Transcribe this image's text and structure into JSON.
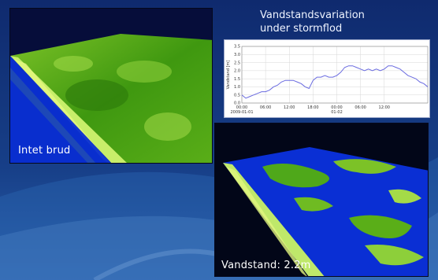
{
  "colors": {
    "background_top": "#0f2a6e",
    "background_bottom": "#1f4f9c",
    "terrain_green": "#3d9a0c",
    "terrain_light": "#b8e35a",
    "water_blue": "#0a2fd4",
    "series_line": "#6a6be0"
  },
  "panel_left": {
    "caption": "Intet brud"
  },
  "panel_right": {
    "caption": "Vandstand: 2.2m"
  },
  "chart_data": {
    "type": "line",
    "title_lines": [
      "Vandstandsvariation",
      "under stormflod"
    ],
    "ylabel": "Vandstand [m]",
    "ylim": [
      0.0,
      3.5
    ],
    "yticks": [
      "3.5",
      "3.0",
      "2.5",
      "2.0",
      "1.5",
      "1.0",
      "0.5",
      "0.0"
    ],
    "xlim": [
      0,
      47
    ],
    "xticks": [
      {
        "x": 0,
        "label": "00:00",
        "sub": "2009-01-01"
      },
      {
        "x": 6,
        "label": "06:00",
        "sub": ""
      },
      {
        "x": 12,
        "label": "12:00",
        "sub": ""
      },
      {
        "x": 18,
        "label": "18:00",
        "sub": ""
      },
      {
        "x": 24,
        "label": "00:00",
        "sub": "01-02"
      },
      {
        "x": 30,
        "label": "06:00",
        "sub": ""
      },
      {
        "x": 36,
        "label": "12:00",
        "sub": ""
      }
    ],
    "grid": true,
    "series": [
      {
        "x": [
          0,
          1,
          2,
          3,
          4,
          5,
          6,
          7,
          8,
          9,
          10,
          11,
          12,
          13,
          14,
          15,
          16,
          17,
          18,
          19,
          20,
          21,
          22,
          23,
          24,
          25,
          26,
          27,
          28,
          29,
          30,
          31,
          32,
          33,
          34,
          35,
          36,
          37,
          38,
          39,
          40,
          41,
          42,
          43,
          44,
          45,
          46,
          47
        ],
        "y": [
          0.5,
          0.3,
          0.4,
          0.5,
          0.6,
          0.7,
          0.7,
          0.8,
          1.0,
          1.1,
          1.3,
          1.4,
          1.4,
          1.4,
          1.3,
          1.2,
          1.0,
          0.9,
          1.4,
          1.6,
          1.6,
          1.7,
          1.6,
          1.6,
          1.7,
          1.9,
          2.2,
          2.3,
          2.3,
          2.2,
          2.1,
          2.0,
          2.1,
          2.0,
          2.1,
          2.0,
          2.1,
          2.3,
          2.3,
          2.2,
          2.1,
          1.9,
          1.7,
          1.6,
          1.5,
          1.3,
          1.2,
          1.0
        ]
      }
    ]
  }
}
